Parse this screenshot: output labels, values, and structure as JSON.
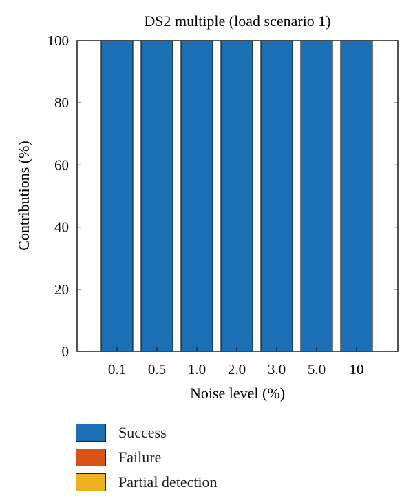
{
  "chart_data": {
    "type": "bar",
    "stacked": true,
    "title": "DS2 multiple (load scenario 1)",
    "xlabel": "Noise level (%)",
    "ylabel": "Contributions (%)",
    "categories": [
      "0.1",
      "0.5",
      "1.0",
      "2.0",
      "3.0",
      "5.0",
      "10"
    ],
    "ylim": [
      0,
      100
    ],
    "yticks": [
      0,
      20,
      40,
      60,
      80,
      100
    ],
    "grid": false,
    "legend_placement": "bottom",
    "series": [
      {
        "name": "Success",
        "color": "#1a6fb5",
        "values": [
          100,
          100,
          100,
          100,
          100,
          100,
          100
        ]
      },
      {
        "name": "Failure",
        "color": "#d95319",
        "values": [
          0,
          0,
          0,
          0,
          0,
          0,
          0
        ]
      },
      {
        "name": "Partial detection",
        "color": "#edb120",
        "values": [
          0,
          0,
          0,
          0,
          0,
          0,
          0
        ]
      }
    ]
  }
}
